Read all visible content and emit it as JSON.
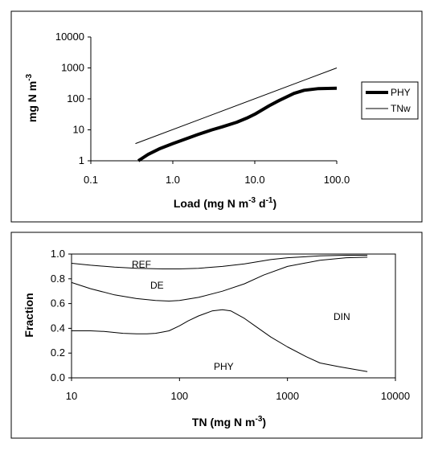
{
  "chart_data": [
    {
      "type": "line",
      "xscale": "log",
      "yscale": "log",
      "xlim": [
        0.1,
        100.0
      ],
      "ylim": [
        1,
        10000
      ],
      "xticks": [
        "0.1",
        "1.0",
        "10.0",
        "100.0"
      ],
      "yticks": [
        "1",
        "10",
        "100",
        "1000",
        "10000"
      ],
      "xlabel": "Load (mg N m",
      "xlabel_sup1": "-3",
      "xlabel_mid": " d",
      "xlabel_sup2": "-1",
      "xlabel_end": ")",
      "ylabel": "mg N m",
      "ylabel_sup": "-3",
      "grid": false,
      "legend_position": "right",
      "series": [
        {
          "name": "PHY",
          "color": "#000000",
          "weight": "thick",
          "x": [
            0.38,
            0.5,
            0.7,
            1.0,
            1.5,
            2.0,
            3.0,
            4.0,
            6.0,
            8.0,
            10.0,
            15.0,
            20.0,
            30.0,
            40.0,
            60.0,
            100.0
          ],
          "y": [
            1.0,
            1.6,
            2.5,
            3.6,
            5.3,
            7.0,
            10.0,
            12.5,
            17.5,
            24.0,
            32.0,
            60.0,
            90.0,
            150.0,
            190.0,
            215.0,
            220.0
          ]
        },
        {
          "name": "TNw",
          "color": "#000000",
          "weight": "thin",
          "x": [
            0.35,
            100.0
          ],
          "y": [
            3.6,
            1000.0
          ]
        }
      ]
    },
    {
      "type": "line",
      "xscale": "log",
      "xlim": [
        10,
        10000
      ],
      "ylim": [
        0.0,
        1.0
      ],
      "xticks": [
        "10",
        "100",
        "1000",
        "10000"
      ],
      "yticks": [
        "0.0",
        "0.2",
        "0.4",
        "0.6",
        "0.8",
        "1.0"
      ],
      "xlabel": "TN (mg N m",
      "xlabel_sup": "-3",
      "xlabel_end": ")",
      "ylabel": "Fraction",
      "grid": false,
      "regions": [
        "REF",
        "DE",
        "PHY",
        "DIN"
      ],
      "series": [
        {
          "x": [
            10,
            15,
            25,
            40,
            70,
            100,
            150,
            250,
            400,
            700,
            1000,
            2000,
            3500,
            5500
          ],
          "y": [
            0.925,
            0.91,
            0.895,
            0.885,
            0.88,
            0.88,
            0.885,
            0.9,
            0.92,
            0.955,
            0.97,
            0.985,
            0.99,
            0.99
          ]
        },
        {
          "x": [
            10,
            15,
            25,
            40,
            60,
            80,
            100,
            150,
            250,
            400,
            600,
            1000,
            2000,
            3500,
            5500
          ],
          "y": [
            0.77,
            0.72,
            0.67,
            0.64,
            0.625,
            0.62,
            0.625,
            0.65,
            0.7,
            0.76,
            0.83,
            0.9,
            0.95,
            0.97,
            0.975
          ]
        },
        {
          "x": [
            10,
            15,
            20,
            30,
            40,
            50,
            60,
            70,
            80,
            100,
            120,
            150,
            200,
            250,
            300,
            400,
            500,
            700,
            1000,
            1500,
            2000,
            3000,
            5500
          ],
          "y": [
            0.38,
            0.38,
            0.375,
            0.36,
            0.355,
            0.355,
            0.36,
            0.37,
            0.38,
            0.42,
            0.46,
            0.5,
            0.54,
            0.55,
            0.54,
            0.48,
            0.42,
            0.33,
            0.25,
            0.17,
            0.12,
            0.09,
            0.05
          ]
        }
      ]
    }
  ]
}
